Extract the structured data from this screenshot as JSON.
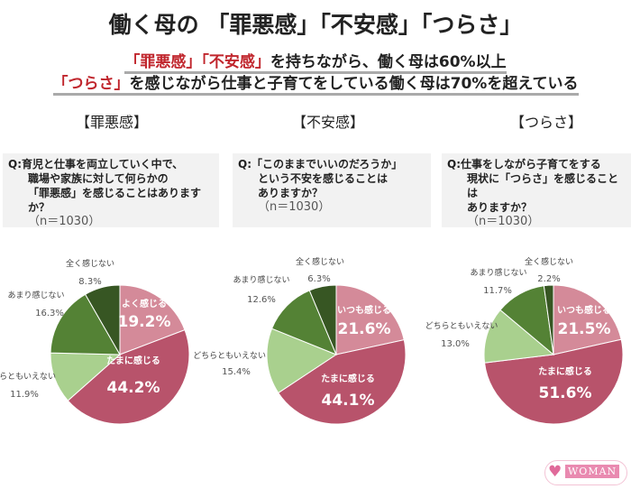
{
  "title": "働く母の 「罪悪感」「不安感」「つらさ」",
  "subtitle": {
    "line1_red": "「罪悪感」「不安感」",
    "line1_rest": "を持ちながら、働く母は60%以上",
    "line2_red": "「つらさ」",
    "line2_rest": "を感じながら仕事と子育てをしている働く母は70%を超えている"
  },
  "sections": [
    {
      "heading": "【罪悪感】",
      "question": [
        "Q:育児と仕事を両立していく中で、",
        "職場や家族に対して何らかの",
        "「罪悪感」を感じることはありますか？"
      ],
      "n": "（n＝1030）"
    },
    {
      "heading": "【不安感】",
      "question": [
        "Q:「このままでいいのだろうか」",
        "という不安を感じることは",
        "ありますか？"
      ],
      "n": "（n＝1030）"
    },
    {
      "heading": "【つらさ】",
      "question": [
        "Q:仕事をしながら子育てをする",
        "現状に「つらさ」を感じることは",
        "ありますか？"
      ],
      "n": "（n＝1030）"
    }
  ],
  "chart_data": [
    {
      "type": "pie",
      "categories": [
        "よく感じる",
        "たまに感じる",
        "どちらともいえない",
        "あまり感じない",
        "全く感じない"
      ],
      "values": [
        19.2,
        44.2,
        11.9,
        16.3,
        8.3
      ],
      "labels": [
        "19.2%",
        "44.2%",
        "11.9%",
        "16.3%",
        "8.3%"
      ]
    },
    {
      "type": "pie",
      "categories": [
        "いつも感じる",
        "たまに感じる",
        "どちらともいえない",
        "あまり感じない",
        "全く感じない"
      ],
      "values": [
        21.6,
        44.1,
        15.4,
        12.6,
        6.3
      ],
      "labels": [
        "21.6%",
        "44.1%",
        "15.4%",
        "12.6%",
        "6.3%"
      ]
    },
    {
      "type": "pie",
      "categories": [
        "いつも感じる",
        "たまに感じる",
        "どちらともいえない",
        "あまり感じない",
        "全く感じない"
      ],
      "values": [
        21.5,
        51.6,
        13.0,
        11.7,
        2.2
      ],
      "labels": [
        "21.5%",
        "51.6%",
        "13.0%",
        "11.7%",
        "2.2%"
      ]
    }
  ],
  "colors": [
    "#d48a99",
    "#b8536b",
    "#a9d08e",
    "#548235",
    "#375623"
  ],
  "logo": {
    "text": "WOMAN"
  }
}
